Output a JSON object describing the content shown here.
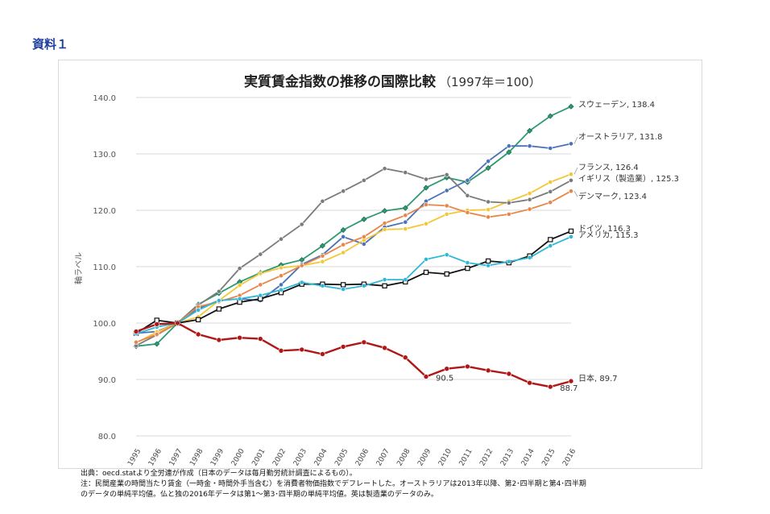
{
  "doc_label": "資料１",
  "notes": [
    "出典：oecd.statより全労連が作成（日本のデータは毎月勤労統計調査によるもの）。",
    "注：民間産業の時間当たり賃金（一時金・時間外手当含む）を消費者物価指数でデフレートした。オーストラリアは2013年以降、第2･四半期と第4･四半期",
    "のデータの単純平均値。仏と独の2016年データは第1～第3･四半期の単純平均値。英は製造業のデータのみ。"
  ],
  "chart_data": {
    "type": "line",
    "title": "実質賃金指数の推移の国際比較",
    "subtitle": "（1997年＝100）",
    "xlabel": "",
    "ylabel": "軸ラベル",
    "ylim": [
      80,
      140
    ],
    "yticks": [
      "80.0",
      "90.0",
      "100.0",
      "110.0",
      "120.0",
      "130.0",
      "140.0"
    ],
    "grid": true,
    "legend": "end-labels",
    "x": [
      "1995",
      "1996",
      "1997",
      "1998",
      "1999",
      "2000",
      "2001",
      "2002",
      "2003",
      "2004",
      "2005",
      "2006",
      "2007",
      "2008",
      "2009",
      "2010",
      "2011",
      "2012",
      "2013",
      "2014",
      "2015",
      "2016"
    ],
    "series": [
      {
        "name": "スウェーデン",
        "end_label": "スウェーデン, 138.4",
        "color": "#2e9a70",
        "marker": "diamond",
        "values": [
          95.9,
          96.3,
          100,
          103.3,
          105.3,
          107.3,
          108.9,
          110.3,
          111.2,
          113.7,
          116.5,
          118.4,
          119.9,
          120.4,
          124.0,
          125.8,
          125.0,
          127.5,
          130.3,
          134.1,
          136.7,
          138.4
        ]
      },
      {
        "name": "オーストラリア",
        "end_label": "オーストラリア, 131.8",
        "color": "#4a72b8",
        "marker": "circle",
        "values": [
          98.2,
          98.5,
          100,
          102.6,
          104.0,
          104.3,
          104.0,
          106.8,
          110.4,
          112.1,
          115.3,
          114.0,
          117.0,
          117.9,
          121.6,
          123.5,
          125.3,
          128.7,
          131.4,
          131.4,
          131.0,
          131.8
        ]
      },
      {
        "name": "フランス",
        "end_label": "フランス, 126.4",
        "color": "#f5c736",
        "marker": "circle",
        "values": [
          96.5,
          98.4,
          100,
          101.1,
          104.0,
          106.7,
          108.8,
          109.8,
          110.2,
          110.9,
          112.5,
          114.7,
          116.6,
          116.7,
          117.6,
          119.3,
          120.0,
          120.1,
          121.6,
          123.0,
          125.0,
          126.4
        ]
      },
      {
        "name": "イギリス（製造業）",
        "end_label": "イギリス（製造業）, 125.3",
        "color": "#7b7b7b",
        "marker": "circle",
        "values": [
          96.0,
          97.9,
          100,
          103.2,
          105.6,
          109.7,
          112.2,
          114.9,
          117.5,
          121.6,
          123.4,
          125.3,
          127.4,
          126.7,
          125.5,
          126.3,
          122.6,
          121.5,
          121.3,
          121.9,
          123.3,
          125.3
        ]
      },
      {
        "name": "デンマーク",
        "end_label": "デンマーク, 123.4",
        "color": "#e8864a",
        "marker": "circle",
        "values": [
          96.6,
          98.0,
          100,
          102.9,
          103.8,
          104.9,
          106.8,
          108.4,
          110.2,
          111.9,
          113.9,
          115.3,
          117.7,
          119.1,
          121.0,
          120.8,
          119.6,
          118.8,
          119.3,
          120.2,
          121.4,
          123.4
        ]
      },
      {
        "name": "ドイツ",
        "end_label": "ドイツ, 116.3",
        "color": "#111111",
        "marker": "square",
        "values": [
          98.2,
          100.5,
          100,
          100.6,
          102.5,
          103.7,
          104.3,
          105.4,
          106.9,
          106.9,
          106.8,
          106.9,
          106.6,
          107.3,
          109.0,
          108.7,
          109.7,
          111.0,
          110.7,
          111.9,
          114.8,
          116.3
        ]
      },
      {
        "name": "アメリカ",
        "end_label": "アメリカ, 115.3",
        "color": "#2cb8d8",
        "marker": "circle",
        "values": [
          98.1,
          99.3,
          100,
          102.3,
          104.0,
          104.3,
          104.9,
          105.9,
          107.2,
          106.6,
          106.0,
          106.6,
          107.7,
          107.7,
          111.3,
          112.1,
          110.7,
          110.2,
          110.9,
          111.6,
          113.7,
          115.3
        ]
      },
      {
        "name": "日本",
        "end_label": "日本, 89.7",
        "color": "#b01818",
        "marker": "circle",
        "values": [
          98.5,
          99.8,
          100,
          98.0,
          97.0,
          97.4,
          97.2,
          95.1,
          95.3,
          94.5,
          95.8,
          96.6,
          95.6,
          93.9,
          90.5,
          91.9,
          92.3,
          91.6,
          91.0,
          89.4,
          88.7,
          89.7
        ]
      }
    ],
    "annotations": [
      {
        "series": "日本",
        "x": "2009",
        "text": "90.5"
      },
      {
        "series": "日本",
        "x": "2015",
        "text": "88.7"
      }
    ]
  }
}
